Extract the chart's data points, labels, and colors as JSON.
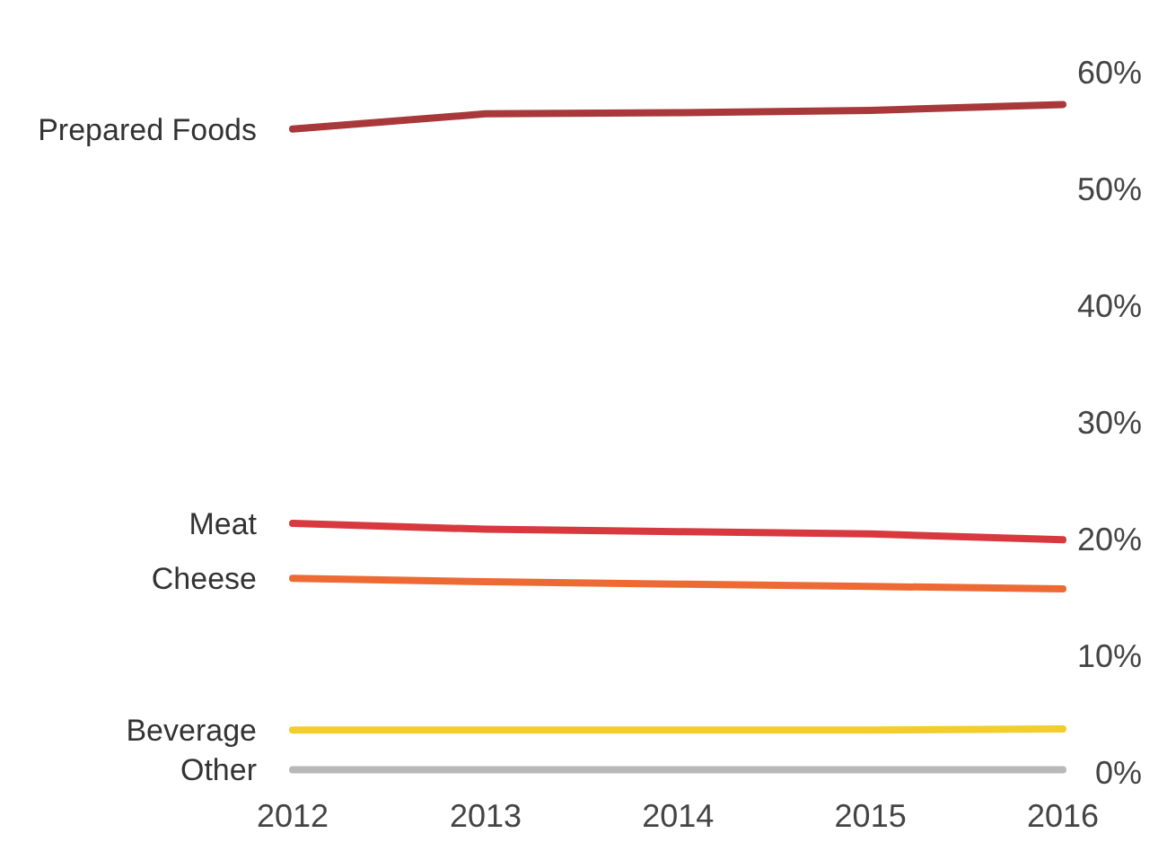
{
  "chart_data": {
    "type": "line",
    "x": [
      "2012",
      "2013",
      "2014",
      "2015",
      "2016"
    ],
    "xticks": [
      {
        "value": "2012",
        "label": "2012"
      },
      {
        "value": "2013",
        "label": "2013"
      },
      {
        "value": "2014",
        "label": "2014"
      },
      {
        "value": "2015",
        "label": "2015"
      },
      {
        "value": "2016",
        "label": "2016"
      }
    ],
    "ylim": [
      0,
      60
    ],
    "yticks": [
      {
        "value": 0,
        "label": "0%"
      },
      {
        "value": 10,
        "label": "10%"
      },
      {
        "value": 20,
        "label": "20%"
      },
      {
        "value": 30,
        "label": "30%"
      },
      {
        "value": 40,
        "label": "40%"
      },
      {
        "value": 50,
        "label": "50%"
      },
      {
        "value": 60,
        "label": "60%"
      }
    ],
    "xlim": [
      "2012",
      "2016"
    ],
    "grid": false,
    "marker": "none",
    "line_style": "solid",
    "series": [
      {
        "name": "Prepared Foods",
        "color": "#a8383a",
        "values": [
          55.1,
          56.4,
          56.5,
          56.7,
          57.2
        ]
      },
      {
        "name": "Meat",
        "color": "#d8393f",
        "values": [
          21.3,
          20.8,
          20.6,
          20.4,
          19.9
        ]
      },
      {
        "name": "Cheese",
        "color": "#ee6a35",
        "values": [
          16.6,
          16.3,
          16.1,
          15.9,
          15.7
        ]
      },
      {
        "name": "Beverage",
        "color": "#f2cd2c",
        "values": [
          3.6,
          3.6,
          3.6,
          3.6,
          3.7
        ]
      },
      {
        "name": "Other",
        "color": "#b8b8b8",
        "values": [
          0.2,
          0.2,
          0.2,
          0.2,
          0.2
        ]
      }
    ]
  }
}
